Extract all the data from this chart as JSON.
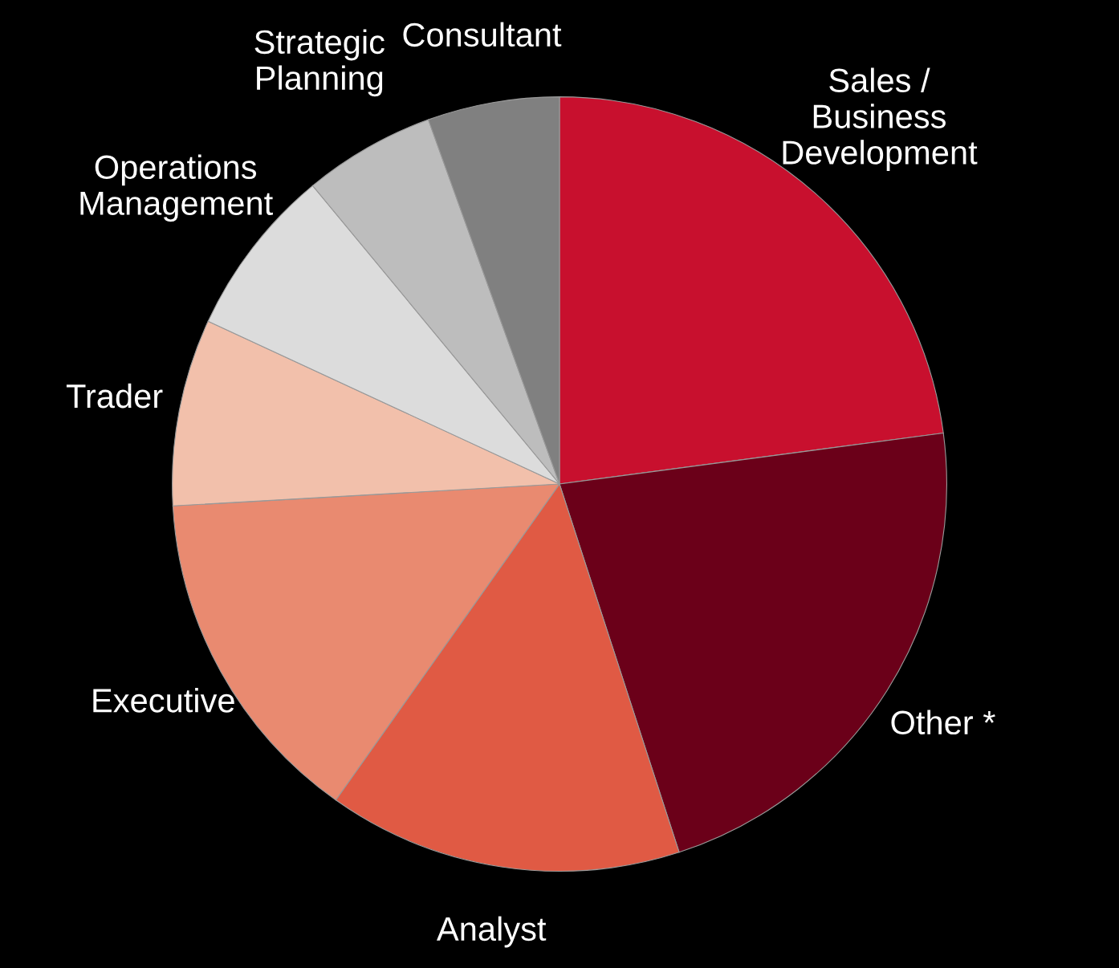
{
  "chart_data": {
    "type": "pie",
    "categories": [
      "Sales /\nBusiness\nDevelopment",
      "Other *",
      "Analyst",
      "Executive",
      "Trader",
      "Operations\nManagement",
      "Strategic\nPlanning",
      "Consultant"
    ],
    "values": [
      22.9,
      22.1,
      14.8,
      14.3,
      7.8,
      7.1,
      5.5,
      5.5
    ],
    "colors": [
      "#c8102e",
      "#6b0019",
      "#e05a44",
      "#e98a70",
      "#f2c0ab",
      "#dcdcdc",
      "#bdbdbd",
      "#808080"
    ]
  }
}
